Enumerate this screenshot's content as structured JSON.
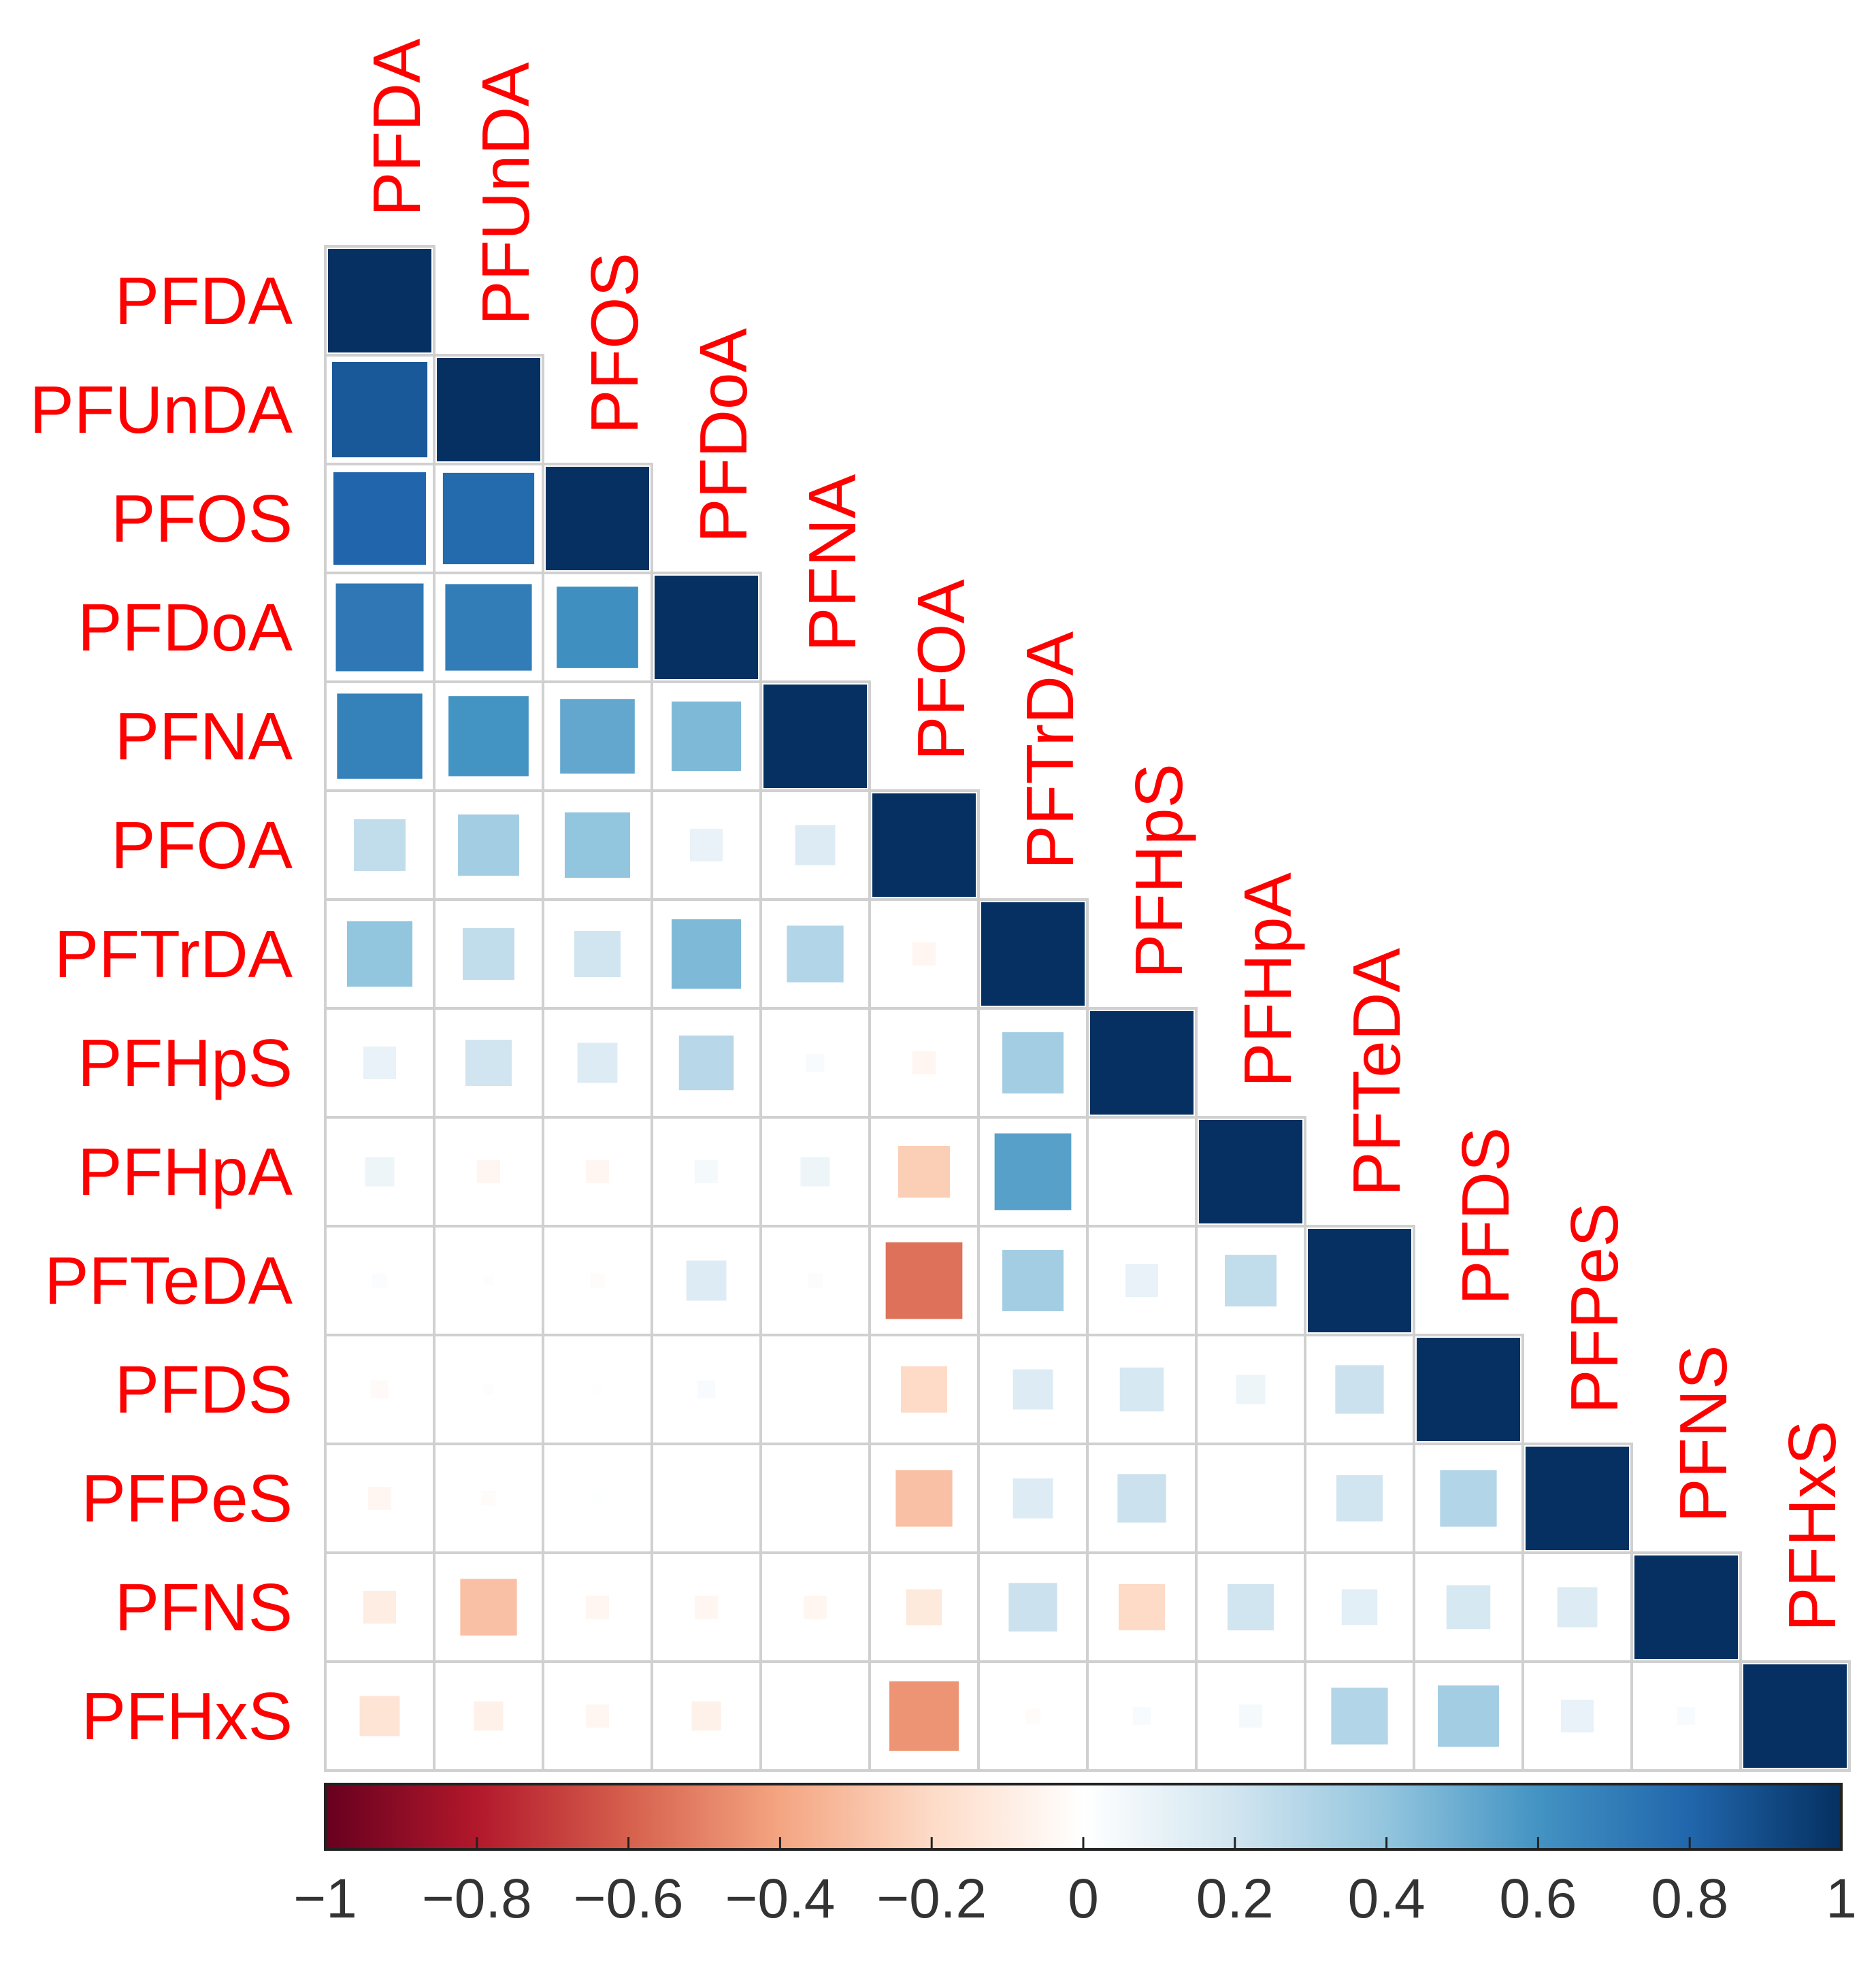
{
  "chart_data": {
    "type": "heatmap",
    "subtype": "correlation-lower-triangle",
    "variables": [
      "PFDA",
      "PFUnDA",
      "PFOS",
      "PFDoA",
      "PFNA",
      "PFOA",
      "PFTrDA",
      "PFHpS",
      "PFHpA",
      "PFTeDA",
      "PFDS",
      "PFPeS",
      "PFNS",
      "PFHxS"
    ],
    "lower_triangle_values": [
      [
        1
      ],
      [
        0.85,
        1
      ],
      [
        0.8,
        0.78,
        1
      ],
      [
        0.72,
        0.7,
        0.62,
        1
      ],
      [
        0.68,
        0.6,
        0.52,
        0.45,
        1
      ],
      [
        0.25,
        0.35,
        0.4,
        0.1,
        0.15,
        1
      ],
      [
        0.4,
        0.25,
        0.2,
        0.45,
        0.3,
        -0.05,
        1
      ],
      [
        0.1,
        0.2,
        0.15,
        0.28,
        0.03,
        -0.05,
        0.35,
        1
      ],
      [
        0.08,
        -0.05,
        -0.05,
        0.05,
        0.08,
        -0.25,
        0.55,
        0.0,
        1
      ],
      [
        0.02,
        -0.01,
        -0.02,
        0.15,
        0.02,
        -0.55,
        0.35,
        0.1,
        0.25,
        1
      ],
      [
        -0.03,
        -0.01,
        0.01,
        0.03,
        0.0,
        -0.2,
        0.15,
        0.18,
        0.08,
        0.22,
        1
      ],
      [
        -0.05,
        -0.02,
        0.01,
        0.0,
        0.0,
        -0.3,
        0.15,
        0.22,
        0.0,
        0.2,
        0.3,
        1
      ],
      [
        -0.1,
        -0.3,
        -0.05,
        -0.05,
        -0.05,
        -0.12,
        0.22,
        -0.2,
        0.2,
        0.12,
        0.18,
        0.15,
        1
      ],
      [
        -0.15,
        -0.08,
        -0.05,
        -0.08,
        0.0,
        -0.45,
        -0.02,
        0.03,
        0.05,
        0.3,
        0.35,
        0.1,
        0.03,
        1
      ]
    ],
    "colorbar": {
      "min": -1,
      "max": 1,
      "tick_labels": [
        "−1",
        "−0.8",
        "−0.6",
        "−0.4",
        "−0.2",
        "0",
        "0.2",
        "0.4",
        "0.6",
        "0.8",
        "1"
      ],
      "tick_values": [
        -1,
        -0.8,
        -0.6,
        -0.4,
        -0.2,
        0,
        0.2,
        0.4,
        0.6,
        0.8,
        1
      ],
      "colors": {
        "neg_1": "#67001F",
        "neg_08": "#B2182B",
        "neg_06": "#D6604D",
        "neg_04": "#F4A582",
        "neg_02": "#FDDBC7",
        "zero": "#FFFFFF",
        "pos_02": "#D1E5F0",
        "pos_04": "#92C5DE",
        "pos_06": "#4393C3",
        "pos_08": "#2166AC",
        "pos_1": "#053061"
      }
    },
    "label_color": "#FF0000",
    "grid_color": "#D0D0D0"
  }
}
